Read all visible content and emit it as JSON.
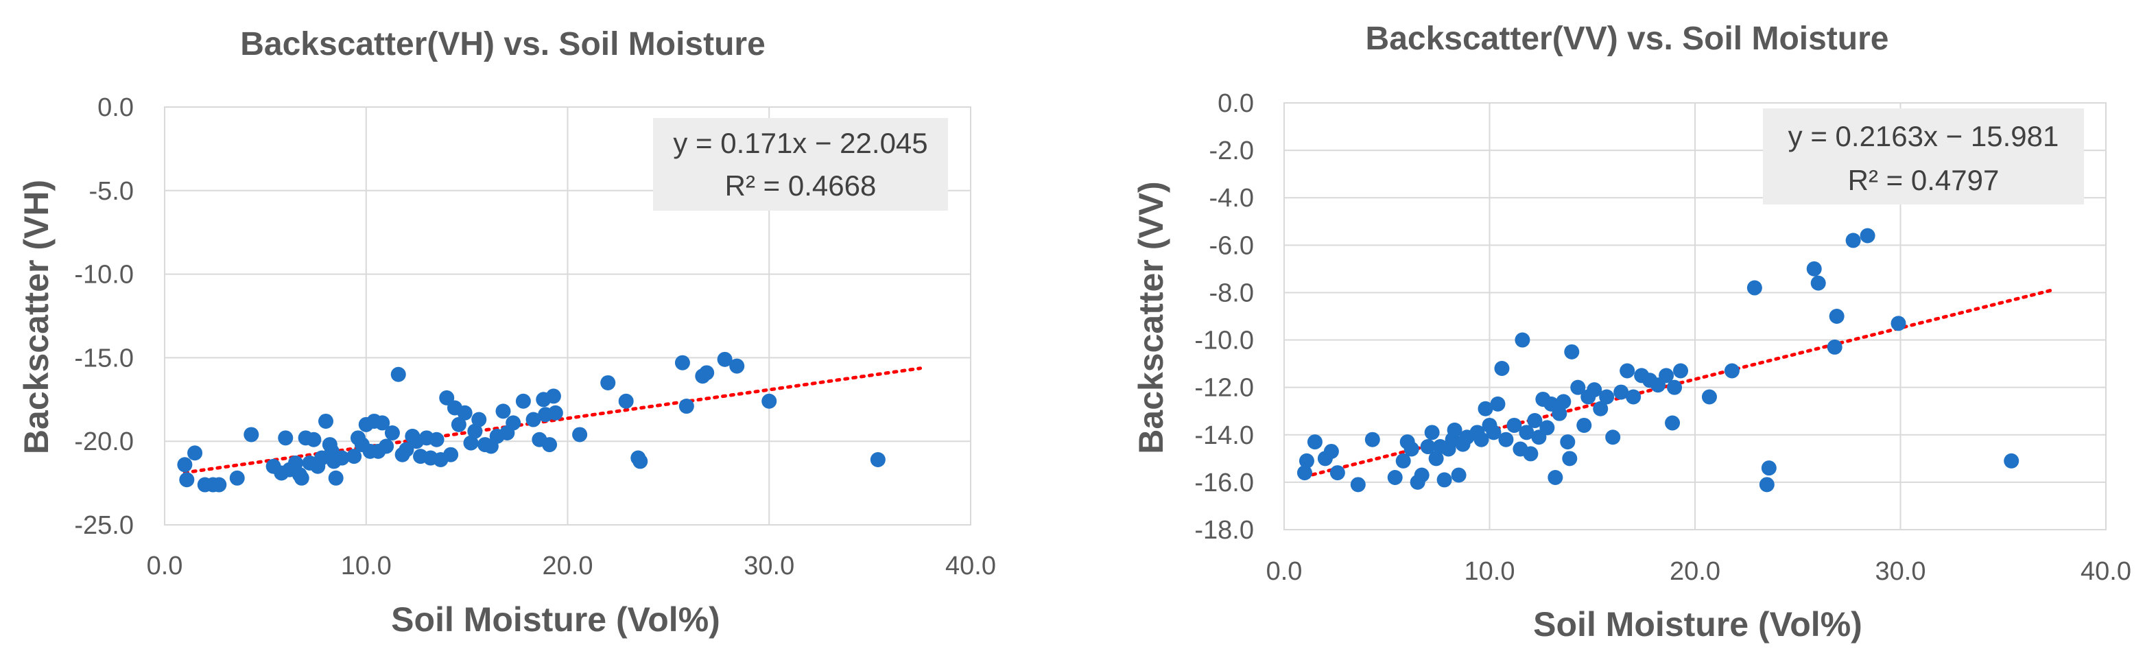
{
  "chart_data": [
    {
      "type": "scatter",
      "title": "Backscatter(VH) vs. Soil Moisture",
      "xlabel": "Soil Moisture (Vol%)",
      "ylabel": "Backscatter (VH)",
      "xlim": [
        0,
        40
      ],
      "ylim": [
        -25,
        0
      ],
      "xticks": [
        0,
        10,
        20,
        30,
        40
      ],
      "yticks": [
        0,
        -5,
        -10,
        -15,
        -20,
        -25
      ],
      "tick_decimals": 1,
      "legend_position": "top-right",
      "trendline": {
        "slope": 0.171,
        "intercept": -22.045,
        "x_range": [
          1.0,
          37.5
        ],
        "style": "dotted",
        "color": "#ff0000"
      },
      "equation": "y = 0.171x − 22.045",
      "r2": "R² = 0.4668",
      "marker_color": "#1f72c6",
      "points": [
        [
          1.0,
          -21.4
        ],
        [
          1.1,
          -22.3
        ],
        [
          1.5,
          -20.7
        ],
        [
          2.0,
          -22.6
        ],
        [
          2.4,
          -22.6
        ],
        [
          2.7,
          -22.6
        ],
        [
          3.6,
          -22.2
        ],
        [
          4.3,
          -19.6
        ],
        [
          5.4,
          -21.5
        ],
        [
          5.8,
          -21.9
        ],
        [
          6.0,
          -19.8
        ],
        [
          6.2,
          -21.7
        ],
        [
          6.5,
          -21.3
        ],
        [
          6.7,
          -22.0
        ],
        [
          6.8,
          -22.2
        ],
        [
          7.0,
          -19.8
        ],
        [
          7.2,
          -21.3
        ],
        [
          7.4,
          -19.9
        ],
        [
          7.6,
          -21.5
        ],
        [
          7.8,
          -21.0
        ],
        [
          8.0,
          -18.8
        ],
        [
          8.2,
          -20.2
        ],
        [
          8.3,
          -20.6
        ],
        [
          8.4,
          -21.2
        ],
        [
          8.5,
          -22.2
        ],
        [
          8.8,
          -21.0
        ],
        [
          9.4,
          -20.9
        ],
        [
          9.6,
          -19.8
        ],
        [
          9.8,
          -20.2
        ],
        [
          10.0,
          -19.0
        ],
        [
          10.2,
          -20.6
        ],
        [
          10.4,
          -18.8
        ],
        [
          10.6,
          -20.6
        ],
        [
          10.8,
          -18.9
        ],
        [
          11.0,
          -20.3
        ],
        [
          11.3,
          -19.5
        ],
        [
          11.6,
          -16.0
        ],
        [
          11.8,
          -20.8
        ],
        [
          12.0,
          -20.5
        ],
        [
          12.3,
          -19.7
        ],
        [
          12.5,
          -20.0
        ],
        [
          12.7,
          -20.9
        ],
        [
          13.0,
          -19.8
        ],
        [
          13.2,
          -21.0
        ],
        [
          13.5,
          -19.9
        ],
        [
          13.7,
          -21.1
        ],
        [
          14.0,
          -17.4
        ],
        [
          14.2,
          -20.8
        ],
        [
          14.4,
          -18.0
        ],
        [
          14.6,
          -19.0
        ],
        [
          14.9,
          -18.3
        ],
        [
          15.2,
          -20.1
        ],
        [
          15.4,
          -19.4
        ],
        [
          15.6,
          -18.7
        ],
        [
          15.9,
          -20.2
        ],
        [
          16.2,
          -20.3
        ],
        [
          16.5,
          -19.7
        ],
        [
          16.8,
          -18.2
        ],
        [
          17.0,
          -19.5
        ],
        [
          17.3,
          -18.9
        ],
        [
          17.8,
          -17.6
        ],
        [
          18.3,
          -18.7
        ],
        [
          18.6,
          -19.9
        ],
        [
          18.8,
          -17.5
        ],
        [
          18.9,
          -18.4
        ],
        [
          19.1,
          -20.2
        ],
        [
          19.3,
          -17.3
        ],
        [
          19.4,
          -18.3
        ],
        [
          20.6,
          -19.6
        ],
        [
          22.0,
          -16.5
        ],
        [
          22.9,
          -17.6
        ],
        [
          23.5,
          -21.0
        ],
        [
          23.6,
          -21.2
        ],
        [
          25.7,
          -15.3
        ],
        [
          25.9,
          -17.9
        ],
        [
          26.7,
          -16.1
        ],
        [
          26.9,
          -15.9
        ],
        [
          27.8,
          -15.1
        ],
        [
          28.4,
          -15.5
        ],
        [
          30.0,
          -17.6
        ],
        [
          35.4,
          -21.1
        ]
      ]
    },
    {
      "type": "scatter",
      "title": "Backscatter(VV) vs. Soil Moisture",
      "xlabel": "Soil Moisture (Vol%)",
      "ylabel": "Backscatter (VV)",
      "xlim": [
        0,
        40
      ],
      "ylim": [
        -18,
        0
      ],
      "xticks": [
        0,
        10,
        20,
        30,
        40
      ],
      "yticks": [
        0,
        -2,
        -4,
        -6,
        -8,
        -10,
        -12,
        -14,
        -16,
        -18
      ],
      "tick_decimals": 1,
      "legend_position": "top-right",
      "trendline": {
        "slope": 0.2163,
        "intercept": -15.981,
        "x_range": [
          1.0,
          37.5
        ],
        "style": "dotted",
        "color": "#ff0000"
      },
      "equation": "y = 0.2163x − 15.981",
      "r2": "R² = 0.4797",
      "marker_color": "#1f72c6",
      "points": [
        [
          1.0,
          -15.6
        ],
        [
          1.1,
          -15.1
        ],
        [
          1.5,
          -14.3
        ],
        [
          2.0,
          -15.0
        ],
        [
          2.3,
          -14.7
        ],
        [
          2.6,
          -15.6
        ],
        [
          3.6,
          -16.1
        ],
        [
          4.3,
          -14.2
        ],
        [
          5.4,
          -15.8
        ],
        [
          5.8,
          -15.1
        ],
        [
          6.0,
          -14.3
        ],
        [
          6.2,
          -14.6
        ],
        [
          6.5,
          -16.0
        ],
        [
          6.7,
          -15.7
        ],
        [
          7.0,
          -14.5
        ],
        [
          7.2,
          -13.9
        ],
        [
          7.4,
          -15.0
        ],
        [
          7.6,
          -14.5
        ],
        [
          7.8,
          -15.9
        ],
        [
          8.0,
          -14.6
        ],
        [
          8.2,
          -14.2
        ],
        [
          8.3,
          -13.8
        ],
        [
          8.5,
          -15.7
        ],
        [
          8.7,
          -14.4
        ],
        [
          8.9,
          -14.1
        ],
        [
          9.4,
          -13.9
        ],
        [
          9.6,
          -14.2
        ],
        [
          9.8,
          -12.9
        ],
        [
          10.0,
          -13.6
        ],
        [
          10.2,
          -13.9
        ],
        [
          10.4,
          -12.7
        ],
        [
          10.6,
          -11.2
        ],
        [
          10.8,
          -14.2
        ],
        [
          11.2,
          -13.6
        ],
        [
          11.5,
          -14.6
        ],
        [
          11.6,
          -10.0
        ],
        [
          11.8,
          -13.9
        ],
        [
          12.0,
          -14.8
        ],
        [
          12.2,
          -13.4
        ],
        [
          12.4,
          -14.1
        ],
        [
          12.6,
          -12.5
        ],
        [
          12.8,
          -13.7
        ],
        [
          13.0,
          -12.7
        ],
        [
          13.2,
          -15.8
        ],
        [
          13.4,
          -13.1
        ],
        [
          13.6,
          -12.6
        ],
        [
          13.8,
          -14.3
        ],
        [
          13.9,
          -15.0
        ],
        [
          14.0,
          -10.5
        ],
        [
          14.3,
          -12.0
        ],
        [
          14.6,
          -13.6
        ],
        [
          14.8,
          -12.4
        ],
        [
          15.1,
          -12.1
        ],
        [
          15.4,
          -12.9
        ],
        [
          15.7,
          -12.4
        ],
        [
          16.0,
          -14.1
        ],
        [
          16.4,
          -12.2
        ],
        [
          16.7,
          -11.3
        ],
        [
          17.0,
          -12.4
        ],
        [
          17.4,
          -11.5
        ],
        [
          17.8,
          -11.7
        ],
        [
          18.2,
          -11.9
        ],
        [
          18.6,
          -11.5
        ],
        [
          18.9,
          -13.5
        ],
        [
          19.0,
          -12.0
        ],
        [
          19.3,
          -11.3
        ],
        [
          20.7,
          -12.4
        ],
        [
          21.8,
          -11.3
        ],
        [
          22.9,
          -7.8
        ],
        [
          23.5,
          -16.1
        ],
        [
          23.6,
          -15.4
        ],
        [
          25.8,
          -7.0
        ],
        [
          26.0,
          -7.6
        ],
        [
          26.8,
          -10.3
        ],
        [
          26.9,
          -9.0
        ],
        [
          27.7,
          -5.8
        ],
        [
          28.4,
          -5.6
        ],
        [
          29.9,
          -9.3
        ],
        [
          35.4,
          -15.1
        ]
      ]
    }
  ]
}
